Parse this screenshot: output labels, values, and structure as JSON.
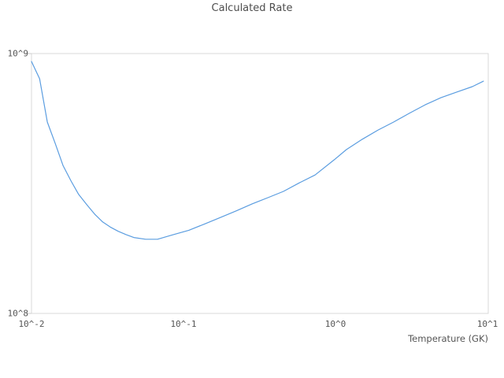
{
  "title": "Calculated Rate",
  "colors": {
    "background": "#ffffff",
    "axis_border": "#d9d9d9",
    "tick_mark": "#cccccc",
    "text": "#4d4d4d",
    "line": "#5b9de0"
  },
  "chart_data": {
    "type": "line",
    "title": "Calculated Rate",
    "xlabel": "Temperature (GK)",
    "ylabel": "",
    "x_scale": "log",
    "y_scale": "log",
    "xlim": [
      0.01,
      10
    ],
    "ylim": [
      100000000.0,
      1000000000.0
    ],
    "grid": false,
    "legend_position": "none",
    "x_tick_values": [
      0.01,
      0.1,
      1,
      10
    ],
    "x_tick_labels": [
      "10^-2",
      "10^-1",
      "10^0",
      "10^1"
    ],
    "y_tick_values": [
      100000000.0,
      1000000000.0
    ],
    "y_tick_labels": [
      "10^8",
      "10^9"
    ],
    "line_color": "#5b9de0",
    "series": [
      {
        "name": "Calculated Rate",
        "x": [
          0.01,
          0.0113,
          0.0127,
          0.0143,
          0.0161,
          0.0182,
          0.0204,
          0.0231,
          0.026,
          0.0293,
          0.0329,
          0.0371,
          0.0418,
          0.047,
          0.0562,
          0.0672,
          0.0855,
          0.108,
          0.137,
          0.174,
          0.221,
          0.281,
          0.357,
          0.452,
          0.574,
          0.729,
          0.973,
          1.17,
          1.49,
          1.89,
          2.39,
          3.03,
          3.85,
          4.88,
          6.2,
          7.86,
          9.3
        ],
        "y": [
          932000000.0,
          800000000.0,
          545000000.0,
          452000000.0,
          371000000.0,
          323000000.0,
          287000000.0,
          262000000.0,
          241000000.0,
          225000000.0,
          215000000.0,
          207000000.0,
          201000000.0,
          196000000.0,
          193000000.0,
          193000000.0,
          201000000.0,
          209000000.0,
          221000000.0,
          234000000.0,
          248000000.0,
          264000000.0,
          279000000.0,
          295000000.0,
          318000000.0,
          341000000.0,
          390000000.0,
          427000000.0,
          468000000.0,
          508000000.0,
          545000000.0,
          589000000.0,
          635000000.0,
          676000000.0,
          711000000.0,
          746000000.0,
          783000000.0
        ]
      }
    ]
  }
}
